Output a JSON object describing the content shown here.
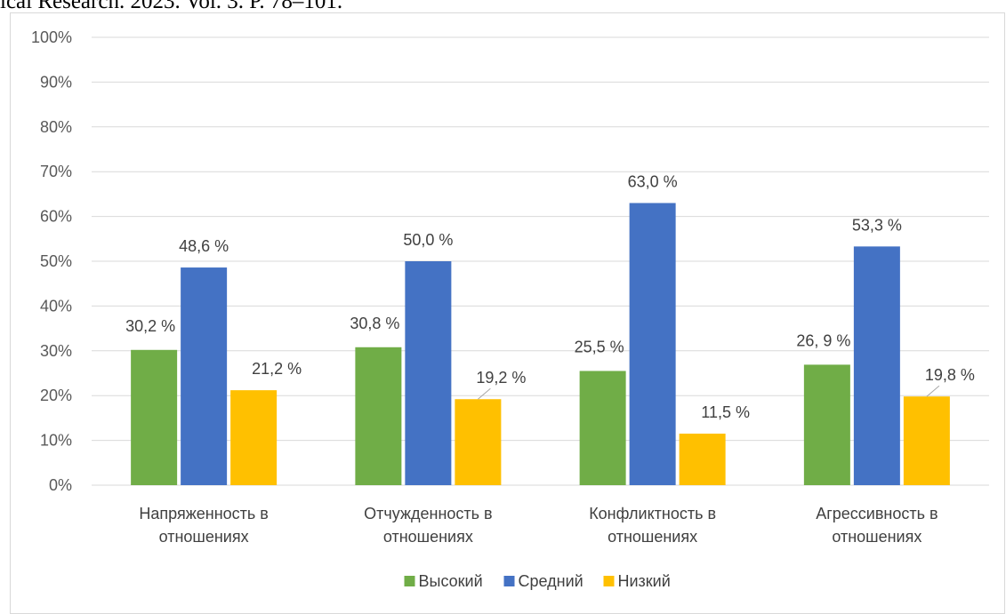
{
  "header_text": "ical Research. 2023. Vol. 3. P. 78–101.",
  "chart_data": {
    "type": "bar",
    "title": "",
    "categories": [
      [
        "Напряженность в",
        "отношениях"
      ],
      [
        "Отчужденность в",
        "отношениях"
      ],
      [
        "Конфликтность в",
        "отношениях"
      ],
      [
        "Агрессивность в",
        "отношениях"
      ]
    ],
    "series": [
      {
        "name": "Высокий",
        "color": "#70ad47",
        "values": [
          30.2,
          30.8,
          25.5,
          26.9
        ],
        "labels": [
          "30,2  %",
          "30,8  %",
          "25,5  %",
          "26, 9  %"
        ]
      },
      {
        "name": "Средний",
        "color": "#4472c4",
        "values": [
          48.6,
          50.0,
          63.0,
          53.3
        ],
        "labels": [
          "48,6  %",
          "50,0  %",
          "63,0  %",
          "53,3  %"
        ]
      },
      {
        "name": "Низкий",
        "color": "#ffc000",
        "values": [
          21.2,
          19.2,
          11.5,
          19.8
        ],
        "labels": [
          "21,2  %",
          "19,2  %",
          "11,5  %",
          "19,8  %"
        ]
      }
    ],
    "yticks": [
      "0%",
      "10%",
      "20%",
      "30%",
      "40%",
      "50%",
      "60%",
      "70%",
      "80%",
      "90%",
      "100%"
    ],
    "ylim": [
      0,
      100
    ],
    "grid": true,
    "legend_position": "bottom"
  }
}
